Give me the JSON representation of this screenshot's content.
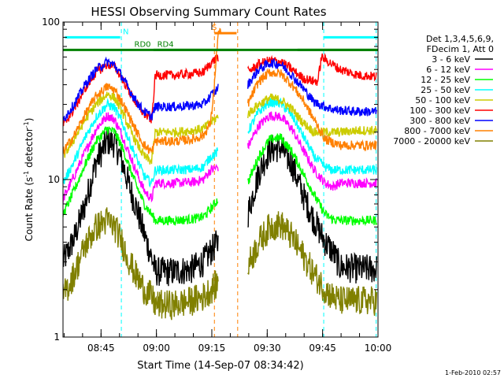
{
  "chart_data": {
    "type": "line",
    "title": "HESSI Observing Summary Count Rates",
    "ylabel_main": "Count Rate (s",
    "ylabel_sup": "-1",
    "ylabel_tail": " detector",
    "ylabel_sup2": "-1",
    "ylabel_close": ")",
    "xlabel": "Start Time (14-Sep-07 08:34:42)",
    "x_unit": "minutes since 08:34:42",
    "xlim": [
      0,
      85.3
    ],
    "y_scale": "log",
    "ylim": [
      1,
      100
    ],
    "y_ticks": [
      {
        "value": 1,
        "label": "1"
      },
      {
        "value": 10,
        "label": "10"
      },
      {
        "value": 100,
        "label": "100"
      }
    ],
    "x_ticks": [
      {
        "value": 10.3,
        "label": "08:45"
      },
      {
        "value": 25.3,
        "label": "09:00"
      },
      {
        "value": 40.3,
        "label": "09:15"
      },
      {
        "value": 55.3,
        "label": "09:30"
      },
      {
        "value": 70.3,
        "label": "09:45"
      },
      {
        "value": 85.3,
        "label": "10:00"
      }
    ],
    "legend_header": [
      "Det 1,3,4,5,6,9,",
      "FDecim 1, Att 0"
    ],
    "legend_position": "right",
    "series": [
      {
        "name": "3 - 6 keV",
        "color": "#000000",
        "x": [
          0,
          3,
          6,
          9,
          12,
          14,
          16,
          18,
          20,
          22,
          24,
          25,
          30,
          35,
          38,
          40,
          42,
          47,
          50,
          53,
          56,
          59,
          62,
          65,
          68,
          71,
          73,
          75,
          80,
          85
        ],
        "y": [
          3.0,
          4.2,
          7.0,
          13.0,
          17.5,
          17.0,
          13.0,
          9.0,
          6.5,
          4.5,
          3.2,
          2.6,
          2.6,
          2.7,
          3.0,
          3.5,
          4.0,
          null,
          6.0,
          11.0,
          15.5,
          16.0,
          12.5,
          8.0,
          5.5,
          4.0,
          3.5,
          2.8,
          2.7,
          2.7
        ]
      },
      {
        "name": "6 - 12 keV",
        "color": "#ff00ff",
        "x": [
          0,
          3,
          6,
          9,
          12,
          14,
          16,
          18,
          20,
          22,
          24,
          25,
          30,
          35,
          38,
          40,
          42,
          47,
          50,
          53,
          56,
          59,
          62,
          65,
          68,
          71,
          73,
          75,
          80,
          85
        ],
        "y": [
          7.5,
          10.5,
          15.0,
          21.0,
          25.5,
          24.0,
          19.0,
          14.5,
          11.0,
          8.5,
          7.5,
          9.5,
          9.5,
          9.6,
          10.0,
          11.5,
          12.0,
          null,
          16.0,
          22.0,
          25.5,
          25.0,
          21.0,
          15.5,
          11.5,
          9.5,
          9.0,
          9.5,
          9.5,
          9.5
        ]
      },
      {
        "name": "12 - 25 keV",
        "color": "#00ff00",
        "x": [
          0,
          3,
          6,
          9,
          12,
          14,
          16,
          18,
          20,
          22,
          24,
          25,
          30,
          35,
          38,
          40,
          42,
          47,
          50,
          53,
          56,
          59,
          62,
          65,
          68,
          71,
          73,
          75,
          80,
          85
        ],
        "y": [
          6.0,
          8.5,
          12.5,
          17.5,
          21.0,
          20.0,
          16.0,
          12.0,
          9.0,
          7.0,
          6.0,
          5.5,
          5.5,
          5.6,
          5.8,
          6.5,
          7.5,
          null,
          9.5,
          14.0,
          18.0,
          18.5,
          15.0,
          11.0,
          8.0,
          6.0,
          5.6,
          5.5,
          5.5,
          5.5
        ]
      },
      {
        "name": "25 - 50 keV",
        "color": "#00ffff",
        "x": [
          0,
          3,
          6,
          9,
          12,
          14,
          16,
          18,
          20,
          22,
          24,
          25,
          30,
          35,
          38,
          40,
          42,
          47,
          50,
          53,
          56,
          59,
          62,
          65,
          68,
          71,
          73,
          75,
          80,
          85
        ],
        "y": [
          9.5,
          13.0,
          18.5,
          25.0,
          30.0,
          28.5,
          23.0,
          17.5,
          13.5,
          10.5,
          9.5,
          11.5,
          11.5,
          11.6,
          12.0,
          14.0,
          15.0,
          null,
          20.0,
          27.0,
          31.0,
          30.5,
          25.5,
          19.0,
          14.0,
          12.0,
          11.5,
          11.5,
          11.5,
          11.5
        ]
      },
      {
        "name": "50 - 100 keV",
        "color": "#cccc00",
        "x": [
          0,
          3,
          6,
          9,
          12,
          14,
          16,
          18,
          20,
          22,
          24,
          25,
          30,
          35,
          38,
          40,
          42,
          47,
          50,
          53,
          56,
          59,
          62,
          65,
          68,
          71,
          73,
          75,
          80,
          85
        ],
        "y": [
          14.0,
          18.0,
          24.0,
          30.0,
          35.0,
          33.0,
          27.0,
          21.0,
          17.0,
          14.0,
          13.0,
          20.0,
          20.0,
          20.5,
          21.0,
          23.0,
          25.0,
          null,
          26.0,
          30.0,
          33.0,
          32.0,
          28.0,
          23.0,
          20.0,
          20.0,
          20.0,
          20.0,
          20.5,
          20.5
        ]
      },
      {
        "name": "100 - 300 keV",
        "color": "#ff0000",
        "x": [
          0,
          3,
          6,
          9,
          12,
          14,
          16,
          18,
          20,
          22,
          24,
          25,
          30,
          35,
          38,
          40,
          42,
          47,
          50,
          53,
          56,
          59,
          62,
          65,
          68,
          69,
          70,
          75,
          80,
          85
        ],
        "y": [
          22.0,
          28.0,
          38.0,
          48.0,
          54.0,
          52.0,
          44.0,
          36.0,
          30.0,
          26.0,
          24.0,
          46.0,
          46.0,
          47.0,
          48.0,
          55.0,
          60.0,
          null,
          48.0,
          54.0,
          57.0,
          56.0,
          50.0,
          44.0,
          42.0,
          42.0,
          60.0,
          50.0,
          46.0,
          45.0
        ]
      },
      {
        "name": "300 - 800 keV",
        "color": "#0000ff",
        "x": [
          0,
          3,
          6,
          9,
          12,
          14,
          16,
          18,
          20,
          22,
          24,
          25,
          30,
          35,
          38,
          40,
          42,
          47,
          50,
          53,
          56,
          59,
          62,
          65,
          68,
          71,
          73,
          75,
          80,
          85
        ],
        "y": [
          24.0,
          30.0,
          40.0,
          50.0,
          56.0,
          53.0,
          45.0,
          37.0,
          31.0,
          27.0,
          25.0,
          29.0,
          29.0,
          29.5,
          30.0,
          34.0,
          38.0,
          null,
          40.0,
          50.0,
          55.0,
          54.0,
          46.0,
          38.0,
          31.0,
          29.0,
          28.0,
          27.5,
          27.0,
          27.0
        ]
      },
      {
        "name": "800 - 7000 keV",
        "color": "#ff8000",
        "x": [
          0,
          3,
          6,
          9,
          12,
          14,
          16,
          18,
          20,
          22,
          24,
          25,
          30,
          35,
          38,
          40,
          41,
          42,
          43,
          47,
          50,
          53,
          56,
          59,
          62,
          65,
          68,
          71,
          75,
          80,
          85
        ],
        "y": [
          15.0,
          19.0,
          26.0,
          34.0,
          39.0,
          37.0,
          31.0,
          25.0,
          20.0,
          16.5,
          15.0,
          17.5,
          17.5,
          18.0,
          19.0,
          23.0,
          40.0,
          85.0,
          85.0,
          null,
          30.0,
          42.0,
          48.0,
          47.0,
          40.0,
          32.0,
          24.0,
          18.0,
          16.5,
          16.5,
          16.5
        ]
      },
      {
        "name": "7000 - 20000 keV",
        "color": "#808000",
        "x": [
          0,
          3,
          6,
          9,
          12,
          14,
          16,
          18,
          20,
          22,
          24,
          25,
          30,
          35,
          38,
          40,
          42,
          47,
          50,
          53,
          56,
          59,
          62,
          65,
          68,
          71,
          73,
          75,
          80,
          85
        ],
        "y": [
          1.8,
          2.5,
          3.8,
          5.0,
          5.5,
          5.0,
          4.0,
          3.0,
          2.4,
          2.0,
          1.8,
          1.6,
          1.6,
          1.7,
          1.8,
          2.0,
          2.2,
          null,
          2.8,
          4.0,
          5.0,
          5.2,
          4.3,
          3.3,
          2.5,
          2.0,
          1.8,
          1.7,
          1.7,
          1.7
        ]
      }
    ],
    "flags": [
      {
        "name": "RD0",
        "color": "#008000",
        "y": 66.5,
        "segments": [
          [
            0,
            85.3
          ]
        ],
        "label_x": 19.3
      },
      {
        "name": "RD4",
        "color": "#008000",
        "y": 66.5,
        "segments": [
          [
            24.5,
            47.0
          ],
          [
            63.5,
            85.3
          ]
        ],
        "label_x": 25.5
      }
    ],
    "n_flag": {
      "name": "N",
      "color": "#00ffff",
      "y": 80.0,
      "segments": [
        [
          0.5,
          15.5
        ],
        [
          70.5,
          85.3
        ]
      ],
      "label_x": 16.2
    },
    "s_flag": {
      "name": "S",
      "color": "#ff8000",
      "y": 85.0,
      "segments": [
        [
          41.0,
          47.0
        ]
      ],
      "label_x": 40.3
    },
    "vlines": [
      {
        "x": 15.8,
        "color": "#00ffff",
        "style": "dashed"
      },
      {
        "x": 41.0,
        "color": "#ff8000",
        "style": "dashed"
      },
      {
        "x": 47.3,
        "color": "#ff8000",
        "style": "dashed"
      },
      {
        "x": 70.6,
        "color": "#00ffff",
        "style": "dashed"
      },
      {
        "x": 84.8,
        "color": "#00ffff",
        "style": "dashed"
      }
    ],
    "footer": "1-Feb-2010 02:57"
  }
}
